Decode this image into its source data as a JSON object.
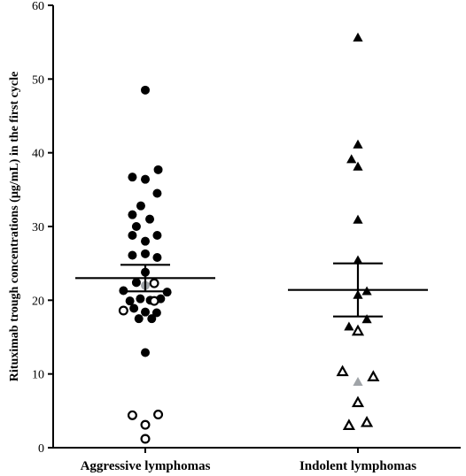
{
  "chart_data": {
    "type": "scatter",
    "ylabel": "Rituximab trough concentrations (µg/mL) in the first cycle",
    "xlabel": "",
    "ylim": [
      0,
      60
    ],
    "yticks": [
      0,
      10,
      20,
      30,
      40,
      50,
      60
    ],
    "grid": false,
    "categories": [
      "Aggressive lymphomas",
      "Indolent lymphomas"
    ],
    "colors": {
      "filled": "#000000",
      "open_stroke": "#000000",
      "highlight": "#a0a4a8"
    },
    "groups": [
      {
        "category": "Aggressive lymphomas",
        "marker": "circle",
        "mean": 23.0,
        "error_low": 21.2,
        "error_high": 24.8,
        "points": [
          {
            "x": 0.0,
            "y": 48.5,
            "style": "filled"
          },
          {
            "x": -0.26,
            "y": 36.7,
            "style": "filled"
          },
          {
            "x": 0.0,
            "y": 36.4,
            "style": "filled"
          },
          {
            "x": 0.26,
            "y": 37.7,
            "style": "filled"
          },
          {
            "x": 0.24,
            "y": 34.5,
            "style": "filled"
          },
          {
            "x": -0.09,
            "y": 32.8,
            "style": "filled"
          },
          {
            "x": -0.26,
            "y": 31.6,
            "style": "filled"
          },
          {
            "x": 0.09,
            "y": 31.0,
            "style": "filled"
          },
          {
            "x": -0.18,
            "y": 30.0,
            "style": "filled"
          },
          {
            "x": -0.26,
            "y": 28.8,
            "style": "filled"
          },
          {
            "x": 0.24,
            "y": 28.8,
            "style": "filled"
          },
          {
            "x": 0.0,
            "y": 28.0,
            "style": "filled"
          },
          {
            "x": -0.26,
            "y": 26.1,
            "style": "filled"
          },
          {
            "x": 0.24,
            "y": 25.8,
            "style": "filled"
          },
          {
            "x": 0.0,
            "y": 26.3,
            "style": "filled"
          },
          {
            "x": 0.0,
            "y": 23.8,
            "style": "filled"
          },
          {
            "x": -0.18,
            "y": 22.4,
            "style": "filled"
          },
          {
            "x": 0.0,
            "y": 22.0,
            "style": "highlight"
          },
          {
            "x": 0.18,
            "y": 22.3,
            "style": "open"
          },
          {
            "x": -0.44,
            "y": 21.3,
            "style": "filled"
          },
          {
            "x": 0.44,
            "y": 21.1,
            "style": "filled"
          },
          {
            "x": -0.31,
            "y": 19.9,
            "style": "filled"
          },
          {
            "x": -0.1,
            "y": 20.2,
            "style": "filled"
          },
          {
            "x": 0.1,
            "y": 20.0,
            "style": "filled"
          },
          {
            "x": 0.31,
            "y": 20.2,
            "style": "filled"
          },
          {
            "x": 0.18,
            "y": 19.9,
            "style": "open"
          },
          {
            "x": -0.44,
            "y": 18.6,
            "style": "open"
          },
          {
            "x": -0.23,
            "y": 18.9,
            "style": "filled"
          },
          {
            "x": 0.0,
            "y": 18.4,
            "style": "filled"
          },
          {
            "x": 0.23,
            "y": 18.3,
            "style": "filled"
          },
          {
            "x": -0.13,
            "y": 17.5,
            "style": "filled"
          },
          {
            "x": 0.13,
            "y": 17.5,
            "style": "filled"
          },
          {
            "x": 0.0,
            "y": 12.9,
            "style": "filled"
          },
          {
            "x": -0.26,
            "y": 4.4,
            "style": "open"
          },
          {
            "x": 0.26,
            "y": 4.5,
            "style": "open"
          },
          {
            "x": 0.0,
            "y": 3.1,
            "style": "open"
          },
          {
            "x": 0.0,
            "y": 1.2,
            "style": "open"
          }
        ]
      },
      {
        "category": "Indolent lymphomas",
        "marker": "triangle",
        "mean": 21.4,
        "error_low": 17.8,
        "error_high": 25.0,
        "points": [
          {
            "x": 0.0,
            "y": 55.6,
            "style": "filled"
          },
          {
            "x": 0.0,
            "y": 41.1,
            "style": "filled"
          },
          {
            "x": -0.13,
            "y": 39.1,
            "style": "filled"
          },
          {
            "x": 0.0,
            "y": 38.1,
            "style": "filled"
          },
          {
            "x": 0.0,
            "y": 30.9,
            "style": "filled"
          },
          {
            "x": 0.0,
            "y": 25.4,
            "style": "filled"
          },
          {
            "x": 0.18,
            "y": 21.2,
            "style": "filled"
          },
          {
            "x": 0.0,
            "y": 20.7,
            "style": "filled"
          },
          {
            "x": 0.18,
            "y": 17.4,
            "style": "filled"
          },
          {
            "x": -0.18,
            "y": 16.4,
            "style": "filled"
          },
          {
            "x": 0.0,
            "y": 15.8,
            "style": "open"
          },
          {
            "x": -0.31,
            "y": 10.3,
            "style": "open"
          },
          {
            "x": 0.31,
            "y": 9.6,
            "style": "open"
          },
          {
            "x": 0.0,
            "y": 8.9,
            "style": "highlight"
          },
          {
            "x": 0.0,
            "y": 6.1,
            "style": "open"
          },
          {
            "x": -0.18,
            "y": 3.0,
            "style": "open"
          },
          {
            "x": 0.18,
            "y": 3.4,
            "style": "open"
          }
        ]
      }
    ]
  }
}
